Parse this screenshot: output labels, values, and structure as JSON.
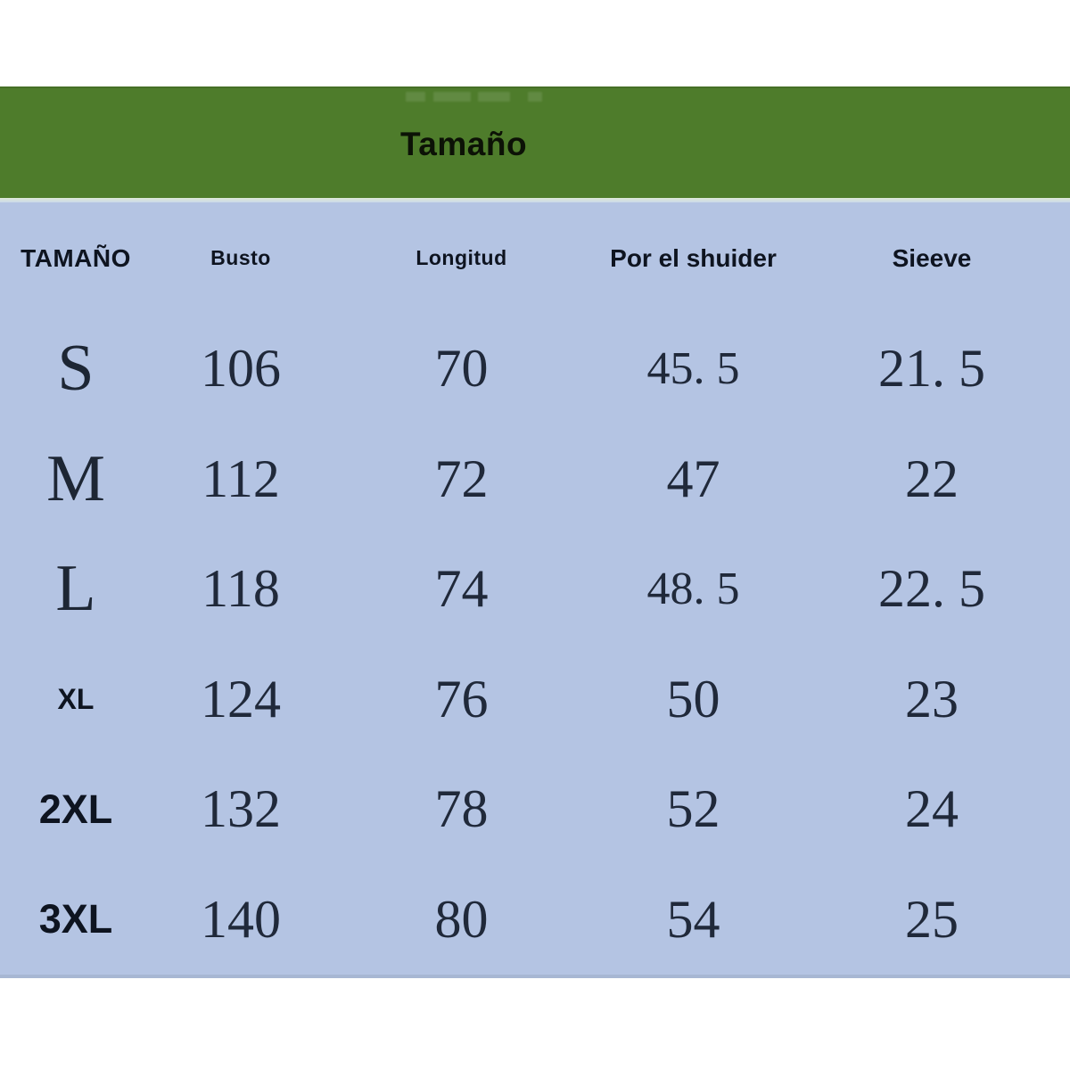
{
  "banner": {
    "title": "Tamaño",
    "bg_color": "#4e7c2b"
  },
  "table": {
    "bg_color": "#b4c4e3",
    "text_color": "#20293a",
    "columns": [
      {
        "label": "TAMAÑO"
      },
      {
        "label": "Busto"
      },
      {
        "label": "Longitud"
      },
      {
        "label": "Por el shuider"
      },
      {
        "label": "Sieeve"
      }
    ],
    "rows": [
      {
        "label": "S",
        "values": [
          "106",
          "70",
          "45. 5",
          "21. 5"
        ]
      },
      {
        "label": "M",
        "values": [
          "112",
          "72",
          "47",
          "22"
        ]
      },
      {
        "label": "L",
        "values": [
          "118",
          "74",
          "48. 5",
          "22. 5"
        ]
      },
      {
        "label": "XL",
        "values": [
          "124",
          "76",
          "50",
          "23"
        ]
      },
      {
        "label": "2XL",
        "values": [
          "132",
          "78",
          "52",
          "24"
        ]
      },
      {
        "label": "3XL",
        "values": [
          "140",
          "80",
          "54",
          "25"
        ]
      }
    ]
  },
  "chart_data": {
    "type": "table",
    "title": "Tamaño",
    "columns": [
      "TAMAÑO",
      "Busto",
      "Longitud",
      "Por el shuider",
      "Sieeve"
    ],
    "rows": [
      [
        "S",
        106,
        70,
        45.5,
        21.5
      ],
      [
        "M",
        112,
        72,
        47,
        22
      ],
      [
        "L",
        118,
        74,
        48.5,
        22.5
      ],
      [
        "XL",
        124,
        76,
        50,
        23
      ],
      [
        "2XL",
        132,
        78,
        52,
        24
      ],
      [
        "3XL",
        140,
        80,
        54,
        25
      ]
    ]
  }
}
